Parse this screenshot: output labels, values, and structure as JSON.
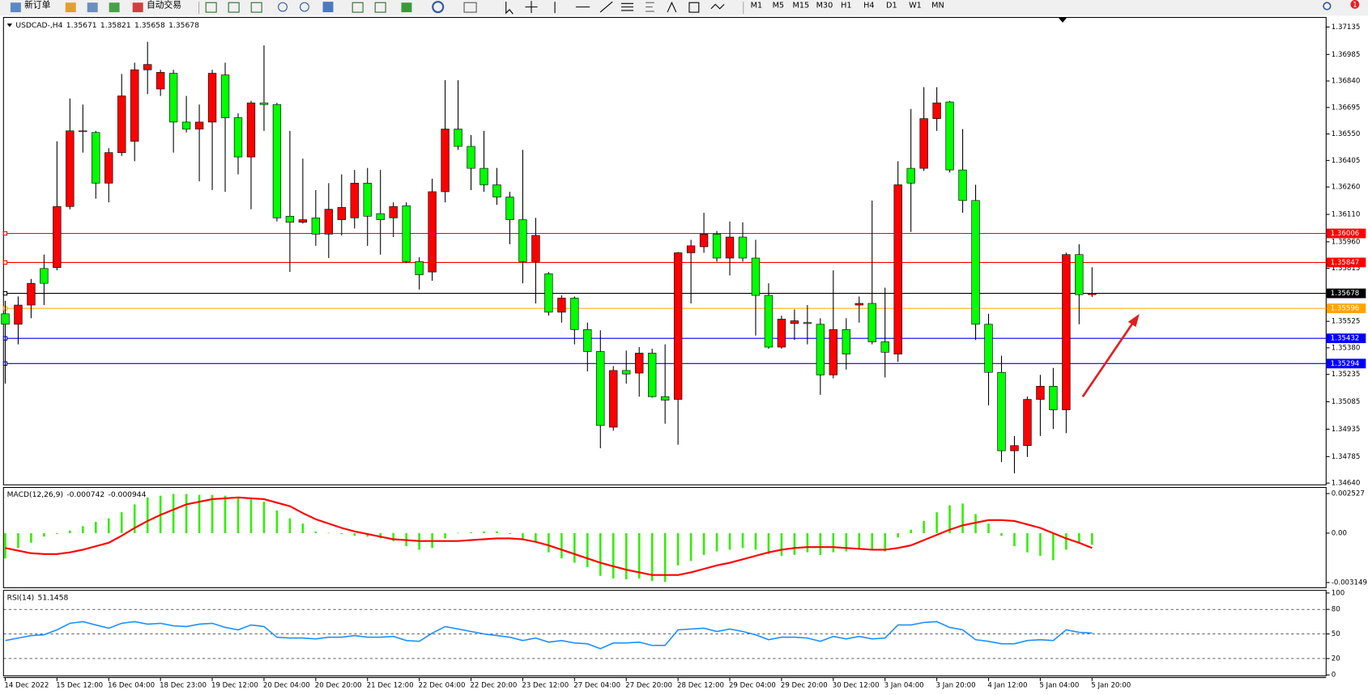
{
  "toolbar": {
    "buttons": [
      "新订单",
      "自动交易"
    ],
    "timeframes": [
      "M1",
      "M5",
      "M15",
      "M30",
      "H1",
      "H4",
      "D1",
      "W1",
      "MN"
    ],
    "badge": 1
  },
  "chart_data": [
    {
      "type": "candlestick",
      "title": "USDCAD-,H4",
      "categories": [
        "14 Dec 2022",
        null,
        null,
        null,
        "15 Dec 12:00",
        null,
        null,
        null,
        "16 Dec 04:00",
        null,
        null,
        null,
        "18 Dec 23:00",
        null,
        null,
        null,
        "19 Dec 12:00",
        null,
        null,
        null,
        "20 Dec 04:00",
        null,
        null,
        null,
        "20 Dec 20:00",
        null,
        null,
        null,
        "21 Dec 12:00",
        null,
        null,
        null,
        "22 Dec 04:00",
        null,
        null,
        null,
        "22 Dec 20:00",
        null,
        null,
        null,
        "23 Dec 12:00",
        null,
        null,
        null,
        "27 Dec 04:00",
        null,
        null,
        null,
        "27 Dec 20:00",
        null,
        null,
        null,
        "28 Dec 12:00",
        null,
        null,
        null,
        "29 Dec 04:00",
        null,
        null,
        null,
        "29 Dec 20:00",
        null,
        null,
        null,
        "30 Dec 12:00",
        null,
        null,
        null,
        "3 Jan 04:00",
        null,
        null,
        null,
        "3 Jan 20:00",
        null,
        null,
        null,
        "4 Jan 12:00",
        null,
        null,
        null,
        "5 Jan 04:00",
        null,
        null,
        null,
        "5 Jan 20:00"
      ],
      "open": [
        1.35566,
        1.35509,
        1.35614,
        1.35814,
        1.35819,
        1.36153,
        1.36567,
        1.36558,
        1.36281,
        1.36448,
        1.3651,
        1.36901,
        1.36796,
        1.36882,
        1.36615,
        1.36577,
        1.36615,
        1.36873,
        1.36639,
        1.36424,
        1.3672,
        1.36711,
        1.361,
        1.36067,
        1.36091,
        1.36002,
        1.36081,
        1.36091,
        1.36281,
        1.36114,
        1.36091,
        1.36157,
        1.35852,
        1.35795,
        1.36234,
        1.36577,
        1.36482,
        1.36362,
        1.36272,
        1.36205,
        1.36081,
        1.35852,
        1.35785,
        1.35575,
        1.35652,
        1.3548,
        1.3536,
        1.34946,
        1.35256,
        1.35242,
        1.35351,
        1.35113,
        1.35098,
        1.359,
        1.35933,
        1.36002,
        1.35871,
        1.35986,
        1.35871,
        1.35667,
        1.35384,
        1.35513,
        1.35518,
        1.35509,
        1.35232,
        1.3548,
        1.35614,
        1.35623,
        1.35413,
        1.35346,
        1.36362,
        1.36362,
        1.36634,
        1.36725,
        1.36353,
        1.36186,
        1.35509,
        1.35246,
        1.34817,
        1.34845,
        1.35098,
        1.3517,
        1.35041,
        1.3589,
        1.35671
      ],
      "high": [
        1.35637,
        1.35661,
        1.35757,
        1.3589,
        1.3651,
        1.36744,
        1.36711,
        1.36567,
        1.36472,
        1.36878,
        1.3694,
        1.37054,
        1.36901,
        1.36901,
        1.36758,
        1.36711,
        1.36901,
        1.3694,
        1.36663,
        1.36731,
        1.37035,
        1.3672,
        1.36567,
        1.36415,
        1.36243,
        1.36281,
        1.36329,
        1.36353,
        1.36364,
        1.36353,
        1.36176,
        1.36176,
        1.35876,
        1.36305,
        1.36844,
        1.36844,
        1.36544,
        1.36567,
        1.36364,
        1.36234,
        1.36463,
        1.36091,
        1.35795,
        1.35667,
        1.35661,
        1.35518,
        1.35476,
        1.3528,
        1.35365,
        1.35384,
        1.35375,
        1.35399,
        1.35904,
        1.35971,
        1.36119,
        1.36019,
        1.36071,
        1.36067,
        1.35971,
        1.35733,
        1.35556,
        1.3559,
        1.35614,
        1.35542,
        1.35804,
        1.35542,
        1.35661,
        1.36186,
        1.35709,
        1.36401,
        1.36687,
        1.36806,
        1.36806,
        1.36731,
        1.36577,
        1.36272,
        1.35566,
        1.35337,
        1.34898,
        1.35113,
        1.35232,
        1.3527,
        1.359,
        1.35947,
        1.35821
      ],
      "low": [
        1.35184,
        1.35399,
        1.35542,
        1.35614,
        1.35804,
        1.36138,
        1.36448,
        1.36196,
        1.36176,
        1.3643,
        1.36401,
        1.36768,
        1.36758,
        1.36448,
        1.36558,
        1.36291,
        1.36243,
        1.36234,
        1.36329,
        1.36138,
        1.36567,
        1.36072,
        1.35795,
        1.3606,
        1.35938,
        1.35871,
        1.35995,
        1.36033,
        1.35938,
        1.3589,
        1.35986,
        1.35843,
        1.35699,
        1.35747,
        1.36176,
        1.36463,
        1.36243,
        1.36234,
        1.36162,
        1.35947,
        1.35733,
        1.35623,
        1.35556,
        1.35518,
        1.35399,
        1.35251,
        1.34831,
        1.34927,
        1.35184,
        1.35113,
        1.35108,
        1.34965,
        1.3485,
        1.35623,
        1.359,
        1.35852,
        1.35776,
        1.35852,
        1.35447,
        1.35375,
        1.35375,
        1.35423,
        1.35399,
        1.35123,
        1.35213,
        1.35261,
        1.35518,
        1.35399,
        1.35218,
        1.35303,
        1.36014,
        1.36348,
        1.36567,
        1.36339,
        1.36119,
        1.35423,
        1.35065,
        1.34755,
        1.34693,
        1.34783,
        1.34898,
        1.34936,
        1.34913,
        1.35509,
        1.35658
      ],
      "close": [
        1.35509,
        1.35614,
        1.35733,
        1.35733,
        1.36153,
        1.36567,
        1.36563,
        1.36281,
        1.36448,
        1.36758,
        1.36901,
        1.3693,
        1.36887,
        1.36615,
        1.36577,
        1.36615,
        1.36882,
        1.36639,
        1.36424,
        1.3672,
        1.36711,
        1.36091,
        1.36067,
        1.36081,
        1.36002,
        1.36138,
        1.36148,
        1.36281,
        1.361,
        1.36081,
        1.36153,
        1.35852,
        1.3578,
        1.36234,
        1.36577,
        1.36482,
        1.36362,
        1.36272,
        1.36205,
        1.36081,
        1.35852,
        1.35995,
        1.35575,
        1.35652,
        1.3548,
        1.3536,
        1.34955,
        1.35256,
        1.35237,
        1.35351,
        1.35113,
        1.35094,
        1.359,
        1.35938,
        1.36002,
        1.35871,
        1.35986,
        1.35871,
        1.35667,
        1.35384,
        1.35537,
        1.35528,
        1.35513,
        1.35232,
        1.3548,
        1.35346,
        1.35623,
        1.35413,
        1.35356,
        1.36272,
        1.36281,
        1.36634,
        1.3672,
        1.36353,
        1.36186,
        1.35509,
        1.35246,
        1.34817,
        1.34845,
        1.35098,
        1.3517,
        1.35041,
        1.3589,
        1.35671,
        1.35678
      ],
      "up_color": "#ff0000",
      "down_color": "#00ff00",
      "ylim": [
        1.3464,
        1.37135
      ],
      "yticks": [
        1.37135,
        1.36985,
        {
          "value": 1.3684,
          "label": "1.36840"
        },
        1.36695,
        {
          "value": 1.3655,
          "label": "1.36550"
        },
        1.36405,
        {
          "value": 1.3626,
          "label": "1.36260"
        },
        {
          "value": 1.3611,
          "label": "1.36110"
        },
        {
          "value": 1.3596,
          "label": "1.35960"
        },
        1.35815,
        1.35525,
        {
          "value": 1.3538,
          "label": "1.35380"
        },
        1.35235,
        1.35085,
        1.34935,
        1.34785,
        {
          "value": 1.3464,
          "label": "1.34640"
        }
      ],
      "hlines": [
        {
          "value": 1.36006,
          "color": "#ff0000"
        },
        {
          "value": 1.35847,
          "color": "#ff0000"
        },
        {
          "value": 1.35678,
          "color": "#000000"
        },
        {
          "value": 1.35596,
          "color": "#ffa500"
        },
        {
          "value": 1.35432,
          "color": "#0000ff"
        },
        {
          "value": 1.35294,
          "color": "#0000ff"
        }
      ]
    },
    {
      "type": "macd",
      "title": "MACD(12,26,9)",
      "series": [
        {
          "style": "histogram",
          "color": "#33ee00",
          "values": [
            -0.001612,
            -0.000945,
            -0.000612,
            -0.000222,
            -5.6e-05,
            0.000167,
            0.000445,
            0.000723,
            0.000945,
            0.001334,
            0.001835,
            0.00228,
            0.002391,
            0.002502,
            0.002502,
            0.002446,
            0.002446,
            0.002391,
            0.00228,
            0.002168,
            0.002002,
            0.001446,
            0.000945,
            0.000612,
            0.000111,
            2e-05,
            -5.6e-05,
            -0.000167,
            -0.000222,
            -0.000334,
            -0.0005,
            -0.000834,
            -0.001056,
            -0.000945,
            -0.000334,
            2e-05,
            5.6e-05,
            0.000111,
            0.000111,
            -5.6e-05,
            -0.000389,
            -0.000612,
            -0.001223,
            -0.001612,
            -0.00189,
            -0.002168,
            -0.002724,
            -0.002891,
            -0.002947,
            -0.002891,
            -0.003058,
            -0.003114,
            -0.002057,
            -0.001779,
            -0.00139,
            -0.001168,
            -0.001056,
            -0.000945,
            -0.001056,
            -0.001334,
            -0.001446,
            -0.00139,
            -0.001223,
            -0.00139,
            -0.001223,
            -0.001168,
            -0.001056,
            -0.001112,
            -0.001168,
            -0.000278,
            0.000222,
            0.000778,
            0.001334,
            0.001779,
            0.00189,
            0.001223,
            0.000612,
            -0.000167,
            -0.000834,
            -0.001223,
            -0.001446,
            -0.001724,
            -0.001056,
            -0.000667,
            -0.000742
          ]
        },
        {
          "style": "line",
          "color": "#ff0000",
          "values": [
            -0.000945,
            -0.001112,
            -0.001279,
            -0.001334,
            -0.001334,
            -0.001223,
            -0.001056,
            -0.000834,
            -0.000612,
            -0.000167,
            0.000334,
            0.000778,
            0.001168,
            0.001501,
            0.001835,
            0.002002,
            0.002168,
            0.002224,
            0.00228,
            0.002224,
            0.002168,
            0.001946,
            0.001724,
            0.001279,
            0.00089,
            0.000612,
            0.000334,
            0.000111,
            -5.6e-05,
            -0.000222,
            -0.000389,
            -0.000445,
            -0.0005,
            -0.0005,
            -0.0005,
            -0.0005,
            -0.000445,
            -0.000389,
            -0.000334,
            -0.000334,
            -0.000389,
            -0.000556,
            -0.000778,
            -0.001056,
            -0.001334,
            -0.001612,
            -0.00189,
            -0.002113,
            -0.002335,
            -0.002502,
            -0.002669,
            -0.002669,
            -0.002669,
            -0.002502,
            -0.00228,
            -0.002057,
            -0.00189,
            -0.001668,
            -0.001446,
            -0.001223,
            -0.001056,
            -0.000945,
            -0.00089,
            -0.00089,
            -0.00089,
            -0.000945,
            -0.001001,
            -0.001056,
            -0.001056,
            -0.000945,
            -0.000778,
            -0.000445,
            -0.000111,
            0.000222,
            0.0005,
            0.000667,
            0.000834,
            0.000834,
            0.000778,
            0.000556,
            0.000334,
            0,
            -0.000334,
            -0.000612,
            -0.000944
          ]
        }
      ],
      "ylim": [
        -0.003149,
        0.002527
      ],
      "yticks": [
        0.002527,
        {
          "value": 0,
          "label": "0.00"
        },
        -0.003149
      ]
    },
    {
      "type": "line",
      "title": "RSI(14)",
      "series": [
        {
          "color": "#1e90ff",
          "values": [
            42,
            45,
            48,
            49,
            55,
            63,
            65,
            61,
            57,
            63,
            65,
            62,
            63,
            60,
            59,
            62,
            63,
            58,
            55,
            61,
            59,
            46,
            45,
            45,
            44,
            46,
            46,
            48,
            46,
            46,
            47,
            42,
            41,
            51,
            59,
            56,
            53,
            50,
            48,
            46,
            42,
            45,
            40,
            42,
            39,
            38,
            32,
            39,
            39,
            40,
            36,
            36,
            55,
            56,
            57,
            53,
            56,
            53,
            49,
            43,
            46,
            46,
            45,
            41,
            47,
            44,
            47,
            44,
            45,
            61,
            61,
            64,
            65,
            58,
            55,
            43,
            41,
            38,
            38,
            42,
            43,
            42,
            55,
            52,
            51.1458
          ]
        }
      ],
      "ylim": [
        0,
        100
      ],
      "yticks": [
        100,
        80,
        50,
        20,
        0
      ],
      "grid": "dashed"
    }
  ]
}
